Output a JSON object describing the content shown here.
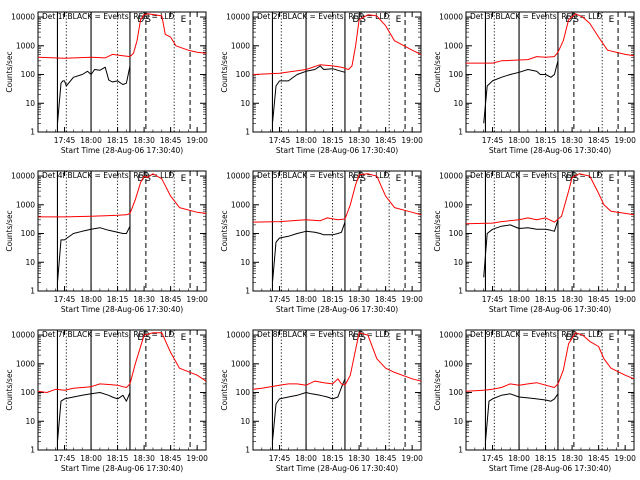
{
  "figure": {
    "tick_labels_x": [
      "17:45",
      "18:00",
      "18:15",
      "18:30",
      "18:45",
      "19:00"
    ],
    "tick_labels_y": [
      "1",
      "10",
      "100",
      "1000",
      "10000"
    ],
    "ylabel": "Counts/sec",
    "xlabel": "Start Time (28-Aug-06 17:30:40)",
    "colors": {
      "events": "#000000",
      "lld": "#ff0000",
      "axes": "#000000"
    }
  },
  "chart_data": [
    {
      "type": "line",
      "title": "Det 1f BLACK = Events, RED = LLD",
      "xlabel": "Start Time (28-Aug-06 17:30:40)",
      "ylabel": "Counts/sec",
      "ylim": [
        1,
        15000
      ],
      "yscale": "log",
      "xlim": [
        "17:30",
        "19:05"
      ],
      "markers": {
        "D": "18:31",
        "S": "18:30",
        "E": "18:50"
      },
      "series": [
        {
          "name": "BLACK = Events",
          "x": [
            "17:41",
            "17:43",
            "17:44",
            "17:45",
            "17:46",
            "17:50",
            "17:55",
            "17:58",
            "18:00",
            "18:02",
            "18:05",
            "18:08",
            "18:10",
            "18:12",
            "18:15",
            "18:18",
            "18:20",
            "18:22"
          ],
          "y": [
            2,
            50,
            60,
            60,
            40,
            80,
            100,
            130,
            100,
            150,
            140,
            180,
            65,
            55,
            60,
            45,
            50,
            200
          ]
        },
        {
          "name": "RED = LLD",
          "x": [
            "17:30",
            "17:45",
            "18:00",
            "18:08",
            "18:12",
            "18:18",
            "18:22",
            "18:24",
            "18:26",
            "18:28",
            "18:30",
            "18:32",
            "18:36",
            "18:40",
            "18:42",
            "18:45",
            "18:48",
            "18:55",
            "19:00",
            "19:05"
          ],
          "y": [
            400,
            370,
            400,
            380,
            500,
            450,
            420,
            550,
            1500,
            8000,
            12000,
            13000,
            12000,
            11000,
            2500,
            2000,
            1000,
            700,
            600,
            550
          ]
        }
      ]
    },
    {
      "type": "line",
      "title": "Det 2f BLACK = Events, RED = LLD",
      "xlabel": "Start Time (28-Aug-06 17:30:40)",
      "ylabel": "Counts/sec",
      "ylim": [
        1,
        15000
      ],
      "yscale": "log",
      "xlim": [
        "17:30",
        "19:05"
      ],
      "markers": {
        "D": "18:31",
        "S": "18:30",
        "E": "18:50"
      },
      "series": [
        {
          "name": "BLACK = Events",
          "x": [
            "17:41",
            "17:43",
            "17:45",
            "17:50",
            "17:55",
            "18:00",
            "18:05",
            "18:08",
            "18:10",
            "18:15",
            "18:18",
            "18:20",
            "18:22"
          ],
          "y": [
            2,
            40,
            60,
            60,
            100,
            130,
            150,
            200,
            150,
            160,
            140,
            130,
            120
          ]
        },
        {
          "name": "RED = LLD",
          "x": [
            "17:30",
            "17:45",
            "18:00",
            "18:08",
            "18:15",
            "18:20",
            "18:24",
            "18:26",
            "18:28",
            "18:30",
            "18:35",
            "18:40",
            "18:45",
            "18:50",
            "19:00",
            "19:05"
          ],
          "y": [
            100,
            110,
            150,
            220,
            200,
            180,
            150,
            200,
            1000,
            8000,
            12000,
            11000,
            5000,
            1500,
            700,
            500
          ]
        }
      ]
    },
    {
      "type": "line",
      "title": "Det 3f BLACK = Events, RED = LLD",
      "xlabel": "Start Time (28-Aug-06 17:30:40)",
      "ylabel": "Counts/sec",
      "ylim": [
        1,
        15000
      ],
      "yscale": "log",
      "xlim": [
        "17:30",
        "19:05"
      ],
      "markers": {
        "D": "18:31",
        "S": "18:30",
        "E": "18:50"
      },
      "series": [
        {
          "name": "BLACK = Events",
          "x": [
            "17:40",
            "17:42",
            "17:45",
            "17:50",
            "17:55",
            "18:00",
            "18:05",
            "18:10",
            "18:12",
            "18:15",
            "18:18",
            "18:20",
            "18:22"
          ],
          "y": [
            2,
            40,
            60,
            80,
            100,
            120,
            150,
            130,
            100,
            100,
            80,
            100,
            300
          ]
        },
        {
          "name": "RED = LLD",
          "x": [
            "17:30",
            "17:45",
            "17:50",
            "18:00",
            "18:05",
            "18:10",
            "18:15",
            "18:20",
            "18:22",
            "18:25",
            "18:28",
            "18:32",
            "18:36",
            "18:40",
            "18:45",
            "18:50",
            "19:00",
            "19:05"
          ],
          "y": [
            250,
            250,
            300,
            320,
            330,
            420,
            400,
            420,
            600,
            1500,
            8000,
            13000,
            10000,
            6000,
            2000,
            700,
            500,
            450
          ]
        }
      ]
    },
    {
      "type": "line",
      "title": "Det 4f BLACK = Events, RED = LLD",
      "xlabel": "Start Time (28-Aug-06 17:30:40)",
      "ylabel": "Counts/sec",
      "ylim": [
        1,
        15000
      ],
      "yscale": "log",
      "xlim": [
        "17:30",
        "19:05"
      ],
      "markers": {
        "D": "18:31",
        "S": "18:30",
        "E": "18:50"
      },
      "series": [
        {
          "name": "BLACK = Events",
          "x": [
            "17:41",
            "17:43",
            "17:45",
            "17:50",
            "17:55",
            "18:00",
            "18:05",
            "18:10",
            "18:15",
            "18:18",
            "18:20",
            "18:22"
          ],
          "y": [
            2,
            60,
            60,
            100,
            120,
            140,
            160,
            130,
            110,
            100,
            100,
            180
          ]
        },
        {
          "name": "RED = LLD",
          "x": [
            "17:30",
            "17:45",
            "18:00",
            "18:10",
            "18:15",
            "18:20",
            "18:22",
            "18:25",
            "18:28",
            "18:30",
            "18:32",
            "18:35",
            "18:40",
            "18:45",
            "18:50",
            "19:00",
            "19:05"
          ],
          "y": [
            380,
            380,
            400,
            420,
            430,
            450,
            500,
            1500,
            6000,
            10000,
            9000,
            12000,
            8000,
            2000,
            800,
            550,
            500
          ]
        }
      ]
    },
    {
      "type": "line",
      "title": "Det 5f BLACK = Events, RED = LLD",
      "xlabel": "Start Time (28-Aug-06 17:30:40)",
      "ylabel": "Counts/sec",
      "ylim": [
        1,
        15000
      ],
      "yscale": "log",
      "xlim": [
        "17:30",
        "19:05"
      ],
      "markers": {
        "D": "18:31",
        "S": "18:30",
        "E": "18:50"
      },
      "series": [
        {
          "name": "BLACK = Events",
          "x": [
            "17:41",
            "17:43",
            "17:45",
            "17:50",
            "17:55",
            "18:00",
            "18:05",
            "18:08",
            "18:10",
            "18:15",
            "18:18",
            "18:20",
            "18:22"
          ],
          "y": [
            2,
            50,
            70,
            80,
            100,
            120,
            110,
            100,
            90,
            90,
            100,
            110,
            250
          ]
        },
        {
          "name": "RED = LLD",
          "x": [
            "17:30",
            "17:45",
            "18:00",
            "18:08",
            "18:12",
            "18:18",
            "18:22",
            "18:25",
            "18:28",
            "18:30",
            "18:35",
            "18:40",
            "18:45",
            "18:50",
            "19:00",
            "19:05"
          ],
          "y": [
            250,
            260,
            300,
            280,
            350,
            300,
            320,
            1000,
            5000,
            11000,
            12000,
            10000,
            2000,
            800,
            550,
            450
          ]
        }
      ]
    },
    {
      "type": "line",
      "title": "Det 6f BLACK = Events, RED = LLD",
      "xlabel": "Start Time (28-Aug-06 17:30:40)",
      "ylabel": "Counts/sec",
      "ylim": [
        1,
        15000
      ],
      "yscale": "log",
      "xlim": [
        "17:30",
        "19:05"
      ],
      "markers": {
        "D": "18:31",
        "S": "18:30",
        "E": "18:50"
      },
      "series": [
        {
          "name": "BLACK = Events",
          "x": [
            "17:40",
            "17:42",
            "17:45",
            "17:50",
            "17:55",
            "18:00",
            "18:05",
            "18:10",
            "18:15",
            "18:18",
            "18:20",
            "18:22"
          ],
          "y": [
            3,
            100,
            140,
            180,
            200,
            150,
            160,
            140,
            140,
            130,
            120,
            300
          ]
        },
        {
          "name": "RED = LLD",
          "x": [
            "17:30",
            "17:45",
            "17:50",
            "18:00",
            "18:05",
            "18:10",
            "18:15",
            "18:20",
            "18:24",
            "18:28",
            "18:30",
            "18:34",
            "18:40",
            "18:45",
            "18:48",
            "18:52",
            "19:00",
            "19:05"
          ],
          "y": [
            220,
            230,
            260,
            300,
            350,
            300,
            350,
            250,
            400,
            3000,
            9000,
            12000,
            10000,
            2500,
            1000,
            600,
            500,
            450
          ]
        }
      ]
    },
    {
      "type": "line",
      "title": "Det 7f BLACK = Events, RED = LLD",
      "xlabel": "Start Time (28-Aug-06 17:30:40)",
      "ylabel": "Counts/sec",
      "ylim": [
        1,
        15000
      ],
      "yscale": "log",
      "xlim": [
        "17:30",
        "19:05"
      ],
      "markers": {
        "D": "18:31",
        "S": "18:30",
        "E": "18:50"
      },
      "series": [
        {
          "name": "BLACK = Events",
          "x": [
            "17:41",
            "17:43",
            "17:45",
            "17:50",
            "17:55",
            "18:00",
            "18:05",
            "18:10",
            "18:12",
            "18:15",
            "18:18",
            "18:20",
            "18:22"
          ],
          "y": [
            2,
            50,
            60,
            70,
            80,
            90,
            100,
            80,
            70,
            60,
            80,
            50,
            100
          ]
        },
        {
          "name": "RED = LLD",
          "x": [
            "17:30",
            "17:35",
            "17:40",
            "17:45",
            "17:50",
            "17:55",
            "18:00",
            "18:05",
            "18:10",
            "18:15",
            "18:18",
            "18:20",
            "18:22",
            "18:25",
            "18:30",
            "18:35",
            "18:40",
            "18:45",
            "18:50",
            "19:00",
            "19:05"
          ],
          "y": [
            110,
            100,
            130,
            120,
            140,
            150,
            160,
            200,
            190,
            180,
            160,
            150,
            200,
            1000,
            10000,
            12000,
            12000,
            2500,
            700,
            400,
            250
          ]
        }
      ]
    },
    {
      "type": "line",
      "title": "Det 8f BLACK = Events, RED = LLD",
      "xlabel": "Start Time (28-Aug-06 17:30:40)",
      "ylabel": "Counts/sec",
      "ylim": [
        1,
        15000
      ],
      "yscale": "log",
      "xlim": [
        "17:30",
        "19:05"
      ],
      "markers": {
        "D": "18:31",
        "S": "18:30",
        "E": "18:50"
      },
      "series": [
        {
          "name": "BLACK = Events",
          "x": [
            "17:41",
            "17:43",
            "17:45",
            "17:50",
            "17:55",
            "18:00",
            "18:03",
            "18:08",
            "18:12",
            "18:15",
            "18:18",
            "18:20",
            "18:22"
          ],
          "y": [
            2,
            40,
            60,
            70,
            80,
            100,
            90,
            80,
            70,
            60,
            70,
            150,
            300
          ]
        },
        {
          "name": "RED = LLD",
          "x": [
            "17:30",
            "17:35",
            "17:40",
            "17:45",
            "17:50",
            "17:55",
            "18:00",
            "18:05",
            "18:10",
            "18:15",
            "18:18",
            "18:20",
            "18:22",
            "18:25",
            "18:30",
            "18:35",
            "18:40",
            "18:45",
            "18:50",
            "19:00",
            "19:05"
          ],
          "y": [
            130,
            140,
            160,
            180,
            200,
            200,
            180,
            250,
            220,
            200,
            300,
            200,
            180,
            400,
            12000,
            10000,
            1500,
            700,
            500,
            300,
            250
          ]
        }
      ]
    },
    {
      "type": "line",
      "title": "Det 9f BLACK = Events, RED = LLD",
      "xlabel": "Start Time (28-Aug-06 17:30:40)",
      "ylabel": "Counts/sec",
      "ylim": [
        1,
        15000
      ],
      "yscale": "log",
      "xlim": [
        "17:30",
        "19:05"
      ],
      "markers": {
        "D": "18:31",
        "S": "18:30",
        "E": "18:50"
      },
      "series": [
        {
          "name": "BLACK = Events",
          "x": [
            "17:41",
            "17:43",
            "17:45",
            "17:50",
            "17:55",
            "18:00",
            "18:05",
            "18:10",
            "18:15",
            "18:18",
            "18:20",
            "18:22"
          ],
          "y": [
            2,
            50,
            60,
            80,
            90,
            70,
            65,
            60,
            55,
            50,
            60,
            90
          ]
        },
        {
          "name": "RED = LLD",
          "x": [
            "17:30",
            "17:40",
            "17:45",
            "17:50",
            "17:55",
            "18:00",
            "18:05",
            "18:10",
            "18:15",
            "18:20",
            "18:22",
            "18:25",
            "18:28",
            "18:32",
            "18:36",
            "18:40",
            "18:45",
            "18:48",
            "18:52",
            "19:00",
            "19:05"
          ],
          "y": [
            110,
            120,
            130,
            150,
            200,
            180,
            200,
            220,
            180,
            150,
            200,
            600,
            5000,
            12000,
            10000,
            6000,
            4000,
            1500,
            700,
            400,
            300
          ]
        }
      ]
    }
  ]
}
